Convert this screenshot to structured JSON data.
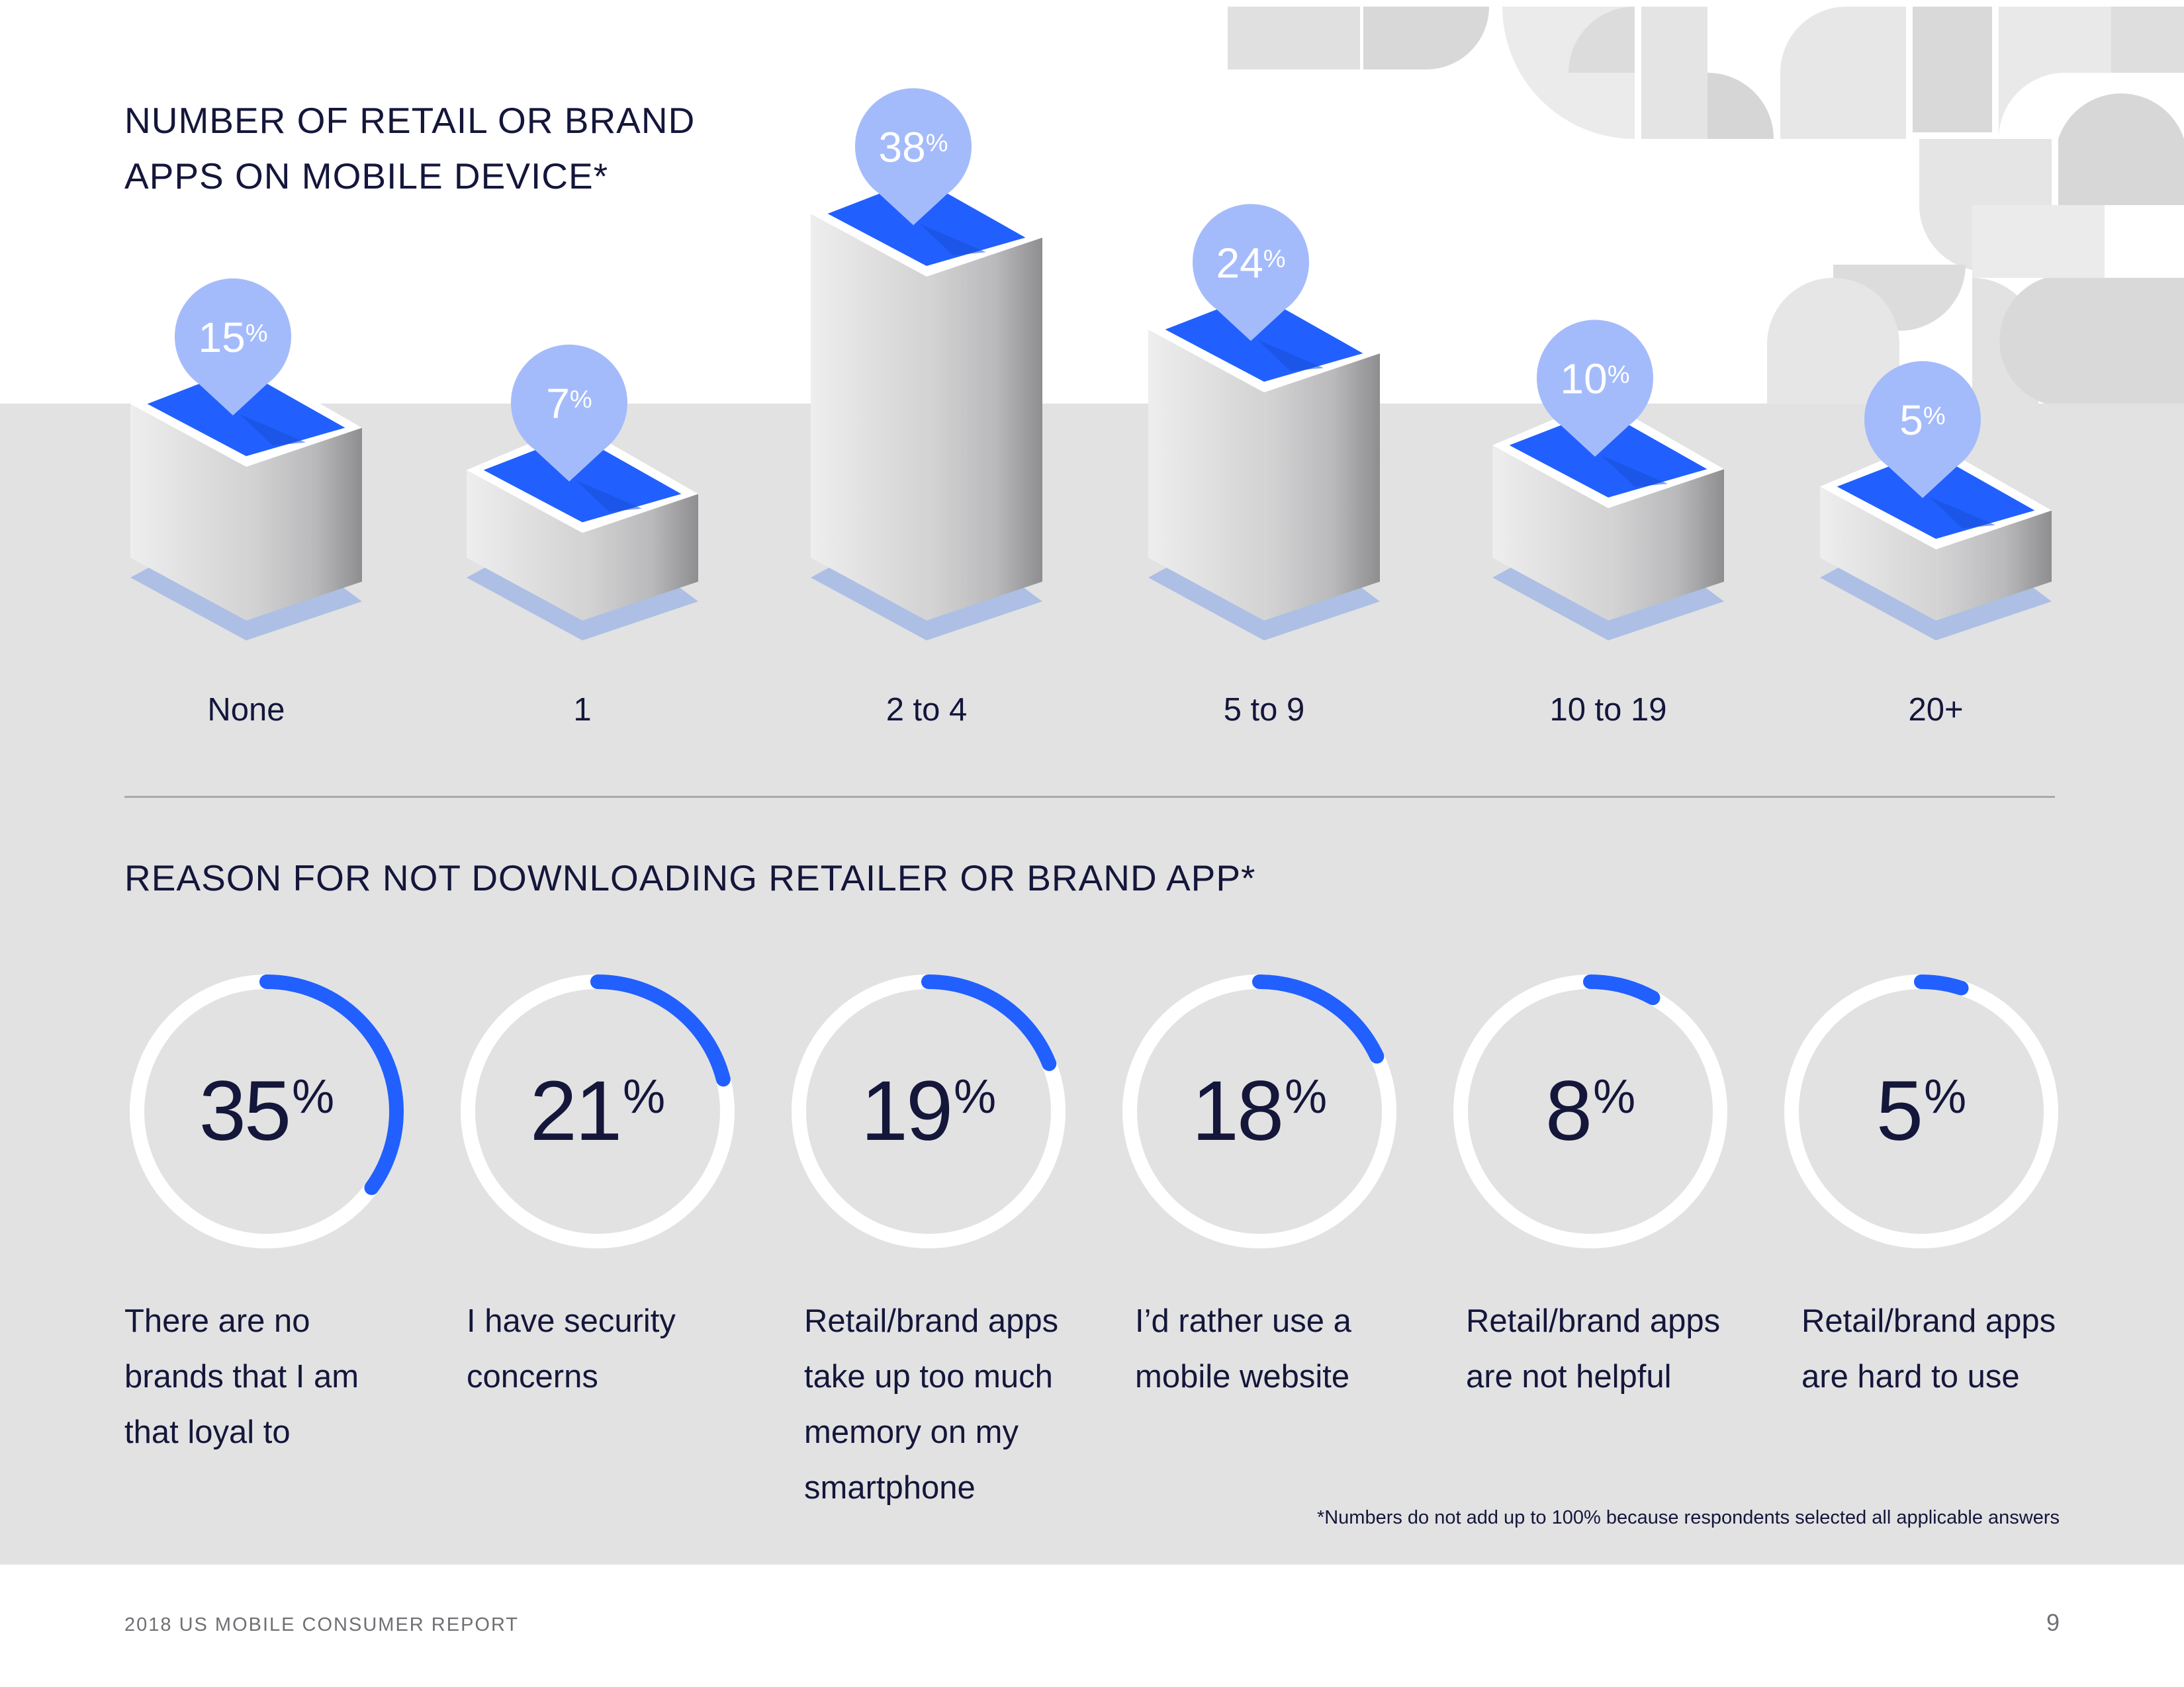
{
  "colors": {
    "accent": "#2160fe",
    "pin": "#a4bbfb",
    "panel": "#e2e2e3",
    "text": "#14163a",
    "shadow": "#a7bbe3"
  },
  "footer": {
    "report_title": "2018 US MOBILE CONSUMER REPORT",
    "page_number": "9"
  },
  "footnote": "*Numbers do not add up to 100% because respondents selected all applicable answers",
  "chart_data": [
    {
      "type": "bar",
      "title": "NUMBER OF RETAIL OR BRAND APPS ON MOBILE DEVICE*",
      "categories": [
        "None",
        "1",
        "2 to 4",
        "5 to 9",
        "10 to 19",
        "20+"
      ],
      "values": [
        15,
        7,
        38,
        24,
        10,
        5
      ],
      "value_labels": [
        "15",
        "7",
        "38",
        "24",
        "10",
        "5"
      ],
      "unit": "%",
      "ylim": [
        0,
        38
      ],
      "grid": false
    },
    {
      "type": "pie",
      "title": "REASON FOR NOT DOWNLOADING RETAILER OR BRAND APP*",
      "categories": [
        "There are no brands that I am that loyal to",
        "I have security concerns",
        "Retail/brand apps take up too much memory on my smartphone",
        "I’d rather use a mobile website",
        "Retail/brand apps are not helpful",
        "Retail/brand apps are hard to use"
      ],
      "values": [
        35,
        21,
        19,
        18,
        8,
        5
      ],
      "value_labels": [
        "35",
        "21",
        "19",
        "18",
        "8",
        "5"
      ],
      "unit": "%"
    }
  ]
}
